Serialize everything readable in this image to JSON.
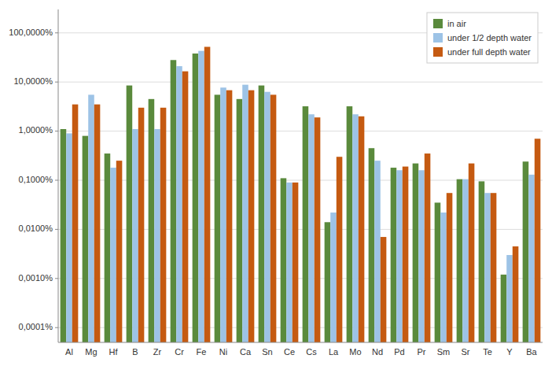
{
  "chart_data": {
    "type": "bar",
    "categories": [
      "Al",
      "Mg",
      "Hf",
      "B",
      "Zr",
      "Cr",
      "Fe",
      "Ni",
      "Ca",
      "Sn",
      "Ce",
      "Cs",
      "La",
      "Mo",
      "Nd",
      "Pd",
      "Pr",
      "Sm",
      "Sr",
      "Te",
      "Y",
      "Ba"
    ],
    "series": [
      {
        "name": "in air",
        "color": "#5A8A3C",
        "values": [
          0.011,
          0.008,
          0.0035,
          0.085,
          0.045,
          0.28,
          0.38,
          0.055,
          0.045,
          0.085,
          0.0011,
          0.032,
          0.00014,
          0.032,
          0.0045,
          0.0018,
          0.0022,
          0.00035,
          0.00105,
          0.00095,
          1.2e-05,
          0.0024
        ]
      },
      {
        "name": "under 1/2 depth water",
        "color": "#9DC3E6",
        "values": [
          0.009,
          0.055,
          0.0018,
          0.011,
          0.011,
          0.21,
          0.43,
          0.077,
          0.088,
          0.063,
          0.0009,
          0.022,
          0.00022,
          0.022,
          0.0025,
          0.0016,
          0.0016,
          0.00022,
          0.00105,
          0.00055,
          3e-05,
          0.0013
        ]
      },
      {
        "name": "under full depth water",
        "color": "#C55A11",
        "values": [
          0.035,
          0.035,
          0.0025,
          0.03,
          0.03,
          0.165,
          0.52,
          0.068,
          0.068,
          0.055,
          0.0009,
          0.019,
          0.003,
          0.02,
          7e-05,
          0.0019,
          0.0035,
          0.00055,
          0.0022,
          0.00055,
          4.5e-05,
          0.007
        ]
      }
    ],
    "ylim": [
      5e-07,
      3.0
    ],
    "yticks": [
      {
        "value": 1e-06,
        "label": "0,0001%"
      },
      {
        "value": 1e-05,
        "label": "0,0010%"
      },
      {
        "value": 0.0001,
        "label": "0,0100%"
      },
      {
        "value": 0.001,
        "label": "0,1000%"
      },
      {
        "value": 0.01,
        "label": "1,0000%"
      },
      {
        "value": 0.1,
        "label": "10,0000%"
      },
      {
        "value": 1.0,
        "label": "100,0000%"
      }
    ],
    "log": "y",
    "grid": true,
    "legend": "upper right"
  }
}
